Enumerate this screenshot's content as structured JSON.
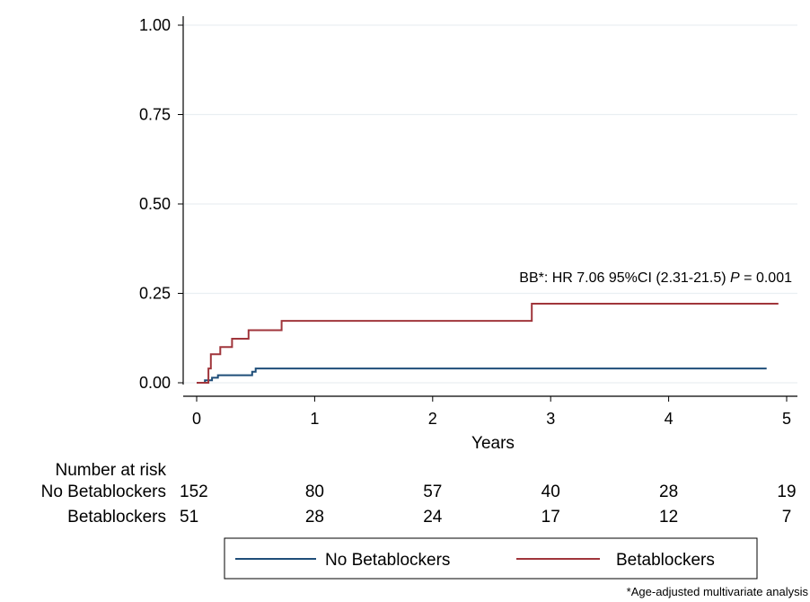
{
  "chart_data": {
    "type": "line",
    "xlabel": "Years",
    "ylabel": "",
    "xlim": [
      0,
      5
    ],
    "ylim": [
      0,
      1
    ],
    "x_ticks": [
      "0",
      "1",
      "2",
      "3",
      "4",
      "5"
    ],
    "y_ticks": [
      "0.00",
      "0.25",
      "0.50",
      "0.75",
      "1.00"
    ],
    "grid": true,
    "series": [
      {
        "name": "No Betablockers",
        "color": "#1f4e79",
        "points": [
          [
            0,
            0
          ],
          [
            0.07,
            0
          ],
          [
            0.07,
            0.007
          ],
          [
            0.13,
            0.007
          ],
          [
            0.13,
            0.014
          ],
          [
            0.18,
            0.014
          ],
          [
            0.18,
            0.021
          ],
          [
            0.47,
            0.021
          ],
          [
            0.47,
            0.031
          ],
          [
            0.5,
            0.031
          ],
          [
            0.5,
            0.04
          ],
          [
            4.83,
            0.04
          ]
        ]
      },
      {
        "name": "Betablockers",
        "color": "#a0353b",
        "points": [
          [
            0,
            0
          ],
          [
            0.1,
            0
          ],
          [
            0.1,
            0.04
          ],
          [
            0.12,
            0.04
          ],
          [
            0.12,
            0.08
          ],
          [
            0.2,
            0.08
          ],
          [
            0.2,
            0.1
          ],
          [
            0.3,
            0.1
          ],
          [
            0.3,
            0.123
          ],
          [
            0.44,
            0.123
          ],
          [
            0.44,
            0.147
          ],
          [
            0.72,
            0.147
          ],
          [
            0.72,
            0.173
          ],
          [
            2.84,
            0.173
          ],
          [
            2.84,
            0.221
          ],
          [
            4.93,
            0.221
          ]
        ]
      }
    ],
    "annotation": {
      "prefix": "BB*: HR 7.06 95%CI (2.31-21.5) ",
      "p_symbol": "P",
      "suffix": " = 0.001"
    },
    "risk_table": {
      "title": "Number at risk",
      "times": [
        0,
        1,
        2,
        3,
        4,
        5
      ],
      "rows": [
        {
          "label": "No Betablockers",
          "values": [
            "152",
            "80",
            "57",
            "40",
            "28",
            "19"
          ]
        },
        {
          "label": "Betablockers",
          "values": [
            "51",
            "28",
            "24",
            "17",
            "12",
            "7"
          ]
        }
      ]
    },
    "legend": {
      "position": "bottom",
      "entries": [
        {
          "label": "No Betablockers",
          "color": "#1f4e79"
        },
        {
          "label": "Betablockers",
          "color": "#a0353b"
        }
      ]
    },
    "footnote": "*Age-adjusted multivariate analysis"
  }
}
